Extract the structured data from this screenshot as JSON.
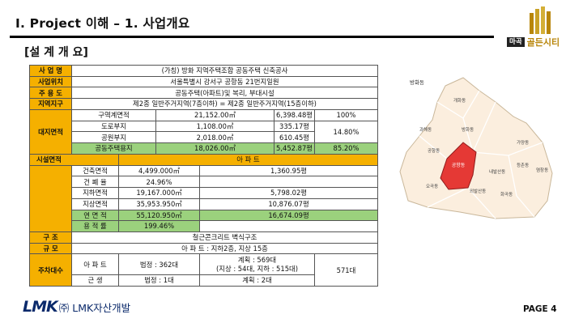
{
  "header": {
    "title": "Ⅰ. Project 이해 – 1. 사업개요"
  },
  "logo": {
    "box": "마곡",
    "name": "골든시티"
  },
  "section": {
    "heading": "[설 계 개 요]"
  },
  "table": {
    "r1": {
      "label": "사 업 명",
      "value": "(가칭) 방화 지역주택조합 공동주택 신축공사"
    },
    "r2": {
      "label": "사업위치",
      "value": "서울특별시 강서구 공항동 21번지일원"
    },
    "r3": {
      "label": "주 용 도",
      "value": "공동주택(아파트)및 복리, 부대시설"
    },
    "r4": {
      "label": "지역지구",
      "value": "제2종 일반주거지역(7층이하) = 제2종 일반주거지역(15층이하)"
    },
    "site": {
      "group_label": "대지면적",
      "rows": [
        {
          "label": "구역계면적",
          "m2": "21,152.00㎡",
          "py": "6,398.48평",
          "pct": "100%"
        },
        {
          "label": "도로부지",
          "m2": "1,108.00㎡",
          "py": "335.17평"
        },
        {
          "label": "공원부지",
          "m2": "2,018.00㎡",
          "py": "610.45평"
        },
        {
          "label": "공동주택용지",
          "m2": "18,026.00㎡",
          "py": "5,452.87평",
          "pct": "85.20%"
        }
      ],
      "road_park_pct": "14.80%"
    },
    "facility": {
      "group_label": "시설면적",
      "col_header": "아 파 트",
      "rows": [
        {
          "label": "건축면적",
          "m2": "4,499.000㎡",
          "py": "1,360.95평"
        },
        {
          "label": "건 폐 율",
          "m2": "24.96%"
        },
        {
          "label": "지하면적",
          "m2": "19,167.000㎡",
          "py": "5,798.02평"
        },
        {
          "label": "지상면적",
          "m2": "35,953.950㎡",
          "py": "10,876.07평"
        },
        {
          "label": "연 면 적",
          "m2": "55,120.950㎡",
          "py": "16,674.09평"
        },
        {
          "label": "용 적 률",
          "m2": "199.46%"
        }
      ]
    },
    "structure": {
      "label": "구 조",
      "value": "철근콘크리트 벽식구조"
    },
    "scale": {
      "label": "규 모",
      "value": "아 파 트 : 지하2층, 지상 15층"
    },
    "parking": {
      "group_label": "주차대수",
      "apt": {
        "label": "아 파 트",
        "legal": "법정 : 362대",
        "plan_1": "계획 : 569대",
        "plan_2": "(지상 : 54대, 지하 : 515대)",
        "total": "571대"
      },
      "rest": {
        "label": "근 생",
        "legal": "법정 : 1대",
        "plan": "계획 : 2대"
      }
    }
  },
  "map": {
    "title": "방화동",
    "districts": [
      "개화동",
      "과해동",
      "방화동",
      "공항동",
      "오곡동",
      "외발산동",
      "내발산동",
      "가양동",
      "등촌동",
      "염창동",
      "화곡동"
    ],
    "highlight_color": "#e53935",
    "highlight_label": "공항동"
  },
  "footer": {
    "lmk": "LMK",
    "company": "㈜ LMK자산개발",
    "page": "PAGE 4"
  }
}
